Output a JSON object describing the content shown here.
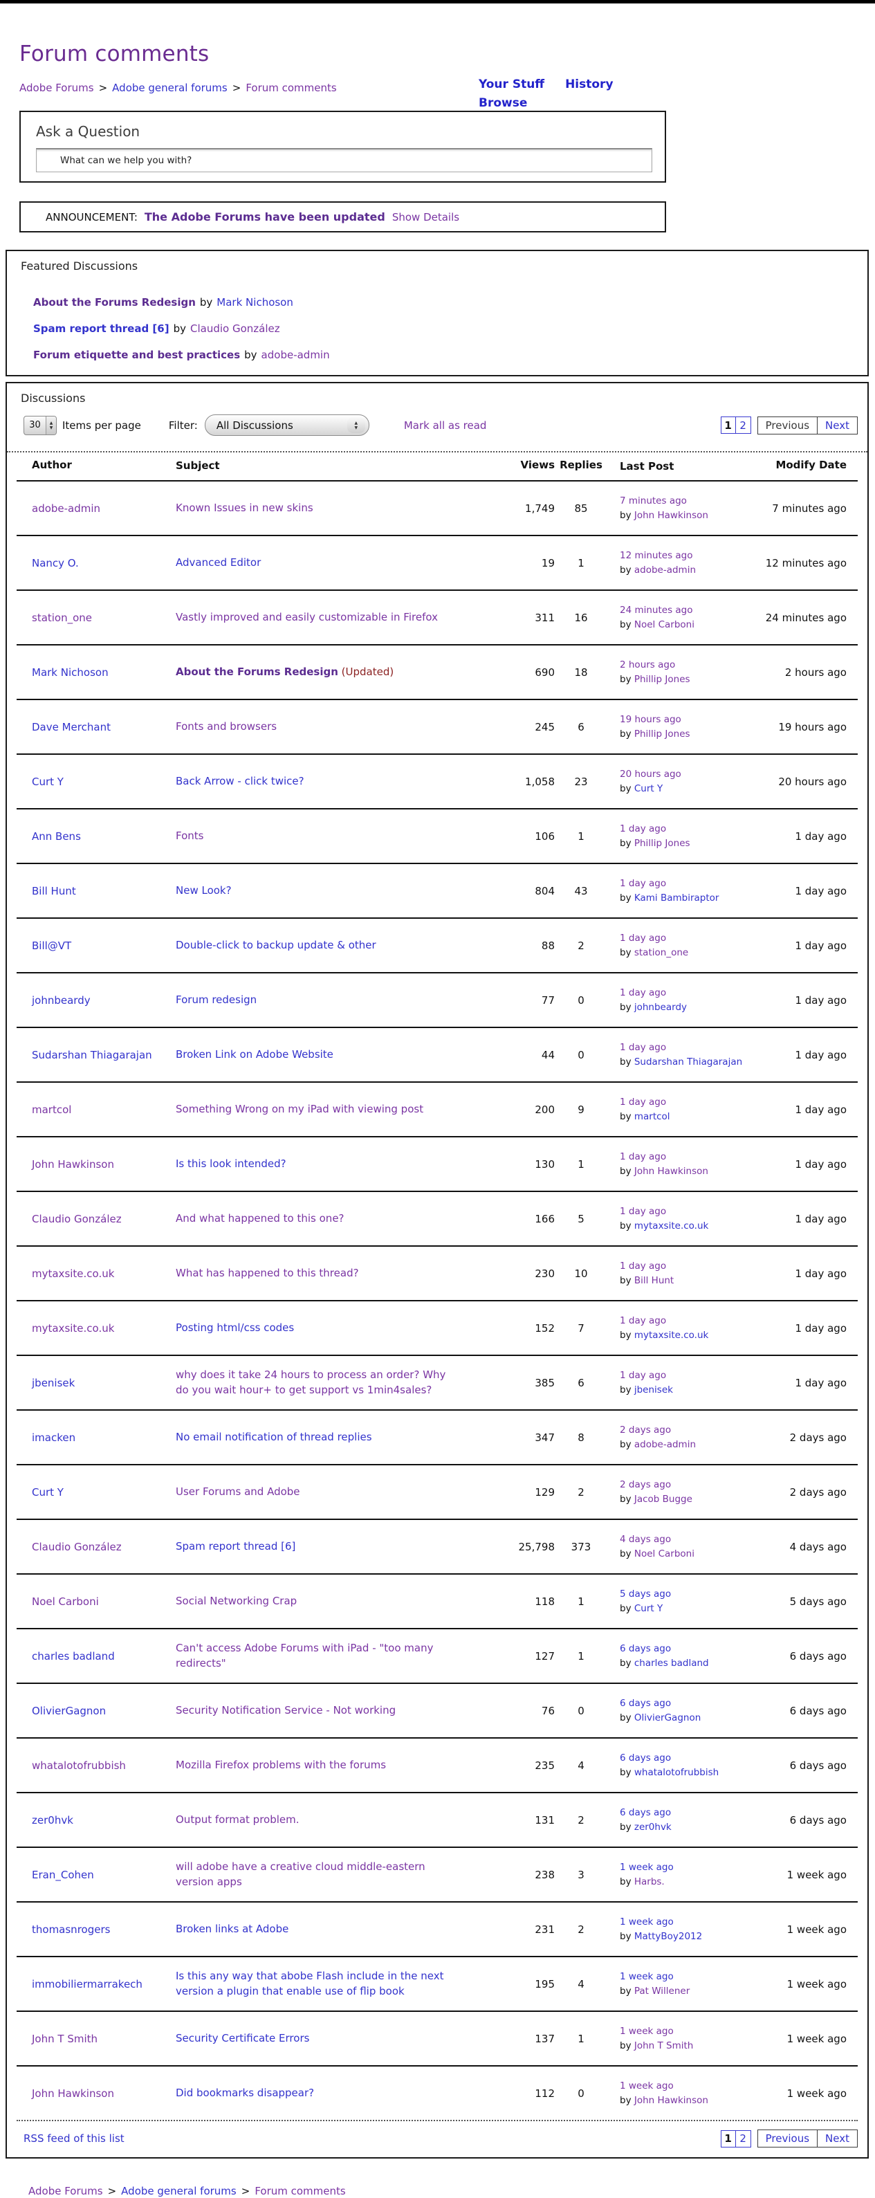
{
  "page": {
    "title": "Forum comments",
    "nav": {
      "your_stuff": "Your Stuff",
      "history": "History",
      "browse": "Browse"
    },
    "breadcrumb": {
      "items": [
        "Adobe Forums",
        "Adobe general forums",
        "Forum comments"
      ],
      "separator": ">"
    }
  },
  "ask": {
    "heading": "Ask a Question",
    "placeholder": "What can we help you with?"
  },
  "announcement": {
    "label": "ANNOUNCEMENT:",
    "message": "The Adobe Forums have been updated",
    "action": "Show Details"
  },
  "featured": {
    "heading": "Featured Discussions",
    "by_word": "by",
    "items": [
      {
        "title": "About the Forums Redesign",
        "title_color": "purple-bold",
        "author": "Mark Nichoson",
        "author_color": "blue"
      },
      {
        "title": "Spam report thread [6]",
        "title_color": "blue",
        "author": "Claudio González",
        "author_color": "purple"
      },
      {
        "title": "Forum etiquette and best practices",
        "title_color": "purple-bold",
        "author": "adobe-admin",
        "author_color": "purple"
      }
    ]
  },
  "discussions": {
    "heading": "Discussions",
    "items_per_page": {
      "value": "30",
      "label": "Items per page"
    },
    "filter": {
      "label": "Filter:",
      "value": "All Discussions"
    },
    "mark_all": "Mark all as read",
    "pagination": {
      "pages": [
        "1",
        "2"
      ],
      "previous": "Previous",
      "next": "Next"
    },
    "columns": [
      "Author",
      "Subject",
      "Views",
      "Replies",
      "Last Post",
      "Modify Date"
    ],
    "by_word": "by",
    "rss": "RSS feed of this list",
    "rows": [
      {
        "author": "adobe-admin",
        "author_color": "purple",
        "subject": "Known Issues in new skins",
        "subject_color": "purple",
        "subject_suffix": "",
        "views": "1,749",
        "replies": "85",
        "last_time": "7 minutes ago",
        "last_time_color": "purple",
        "last_by": "John Hawkinson",
        "last_by_color": "purple",
        "modified": "7 minutes ago"
      },
      {
        "author": "Nancy O.",
        "author_color": "blue",
        "subject": "Advanced Editor",
        "subject_color": "blue",
        "subject_suffix": "",
        "views": "19",
        "replies": "1",
        "last_time": "12 minutes ago",
        "last_time_color": "purple",
        "last_by": "adobe-admin",
        "last_by_color": "purple",
        "modified": "12 minutes ago"
      },
      {
        "author": "station_one",
        "author_color": "purple",
        "subject": "Vastly improved and easily customizable in Firefox",
        "subject_color": "purple",
        "subject_suffix": "",
        "views": "311",
        "replies": "16",
        "last_time": "24 minutes ago",
        "last_time_color": "purple",
        "last_by": "Noel Carboni",
        "last_by_color": "purple",
        "modified": "24 minutes ago"
      },
      {
        "author": "Mark Nichoson",
        "author_color": "blue",
        "subject": "About the Forums Redesign",
        "subject_color": "purple-bold",
        "subject_suffix": "(Updated)",
        "views": "690",
        "replies": "18",
        "last_time": "2 hours ago",
        "last_time_color": "purple",
        "last_by": "Phillip Jones",
        "last_by_color": "purple",
        "modified": "2 hours ago"
      },
      {
        "author": "Dave Merchant",
        "author_color": "blue",
        "subject": "Fonts and browsers",
        "subject_color": "purple",
        "subject_suffix": "",
        "views": "245",
        "replies": "6",
        "last_time": "19 hours ago",
        "last_time_color": "purple",
        "last_by": "Phillip Jones",
        "last_by_color": "purple",
        "modified": "19 hours ago"
      },
      {
        "author": "Curt Y",
        "author_color": "blue",
        "subject": "Back Arrow - click twice?",
        "subject_color": "blue",
        "subject_suffix": "",
        "views": "1,058",
        "replies": "23",
        "last_time": "20 hours ago",
        "last_time_color": "purple",
        "last_by": "Curt Y",
        "last_by_color": "blue",
        "modified": "20 hours ago"
      },
      {
        "author": "Ann Bens",
        "author_color": "blue",
        "subject": "Fonts",
        "subject_color": "purple",
        "subject_suffix": "",
        "views": "106",
        "replies": "1",
        "last_time": "1 day ago",
        "last_time_color": "purple",
        "last_by": "Phillip Jones",
        "last_by_color": "purple",
        "modified": "1 day ago"
      },
      {
        "author": "Bill Hunt",
        "author_color": "blue",
        "subject": "New Look?",
        "subject_color": "blue",
        "subject_suffix": "",
        "views": "804",
        "replies": "43",
        "last_time": "1 day ago",
        "last_time_color": "purple",
        "last_by": "Kami Bambiraptor",
        "last_by_color": "blue",
        "modified": "1 day ago"
      },
      {
        "author": "Bill@VT",
        "author_color": "blue",
        "subject": "Double-click to backup update & other",
        "subject_color": "blue",
        "subject_suffix": "",
        "views": "88",
        "replies": "2",
        "last_time": "1 day ago",
        "last_time_color": "purple",
        "last_by": "station_one",
        "last_by_color": "purple",
        "modified": "1 day ago"
      },
      {
        "author": "johnbeardy",
        "author_color": "blue",
        "subject": "Forum redesign",
        "subject_color": "blue",
        "subject_suffix": "",
        "views": "77",
        "replies": "0",
        "last_time": "1 day ago",
        "last_time_color": "purple",
        "last_by": "johnbeardy",
        "last_by_color": "blue",
        "modified": "1 day ago"
      },
      {
        "author": "Sudarshan Thiagarajan",
        "author_color": "blue",
        "subject": "Broken Link on Adobe Website",
        "subject_color": "blue",
        "subject_suffix": "",
        "views": "44",
        "replies": "0",
        "last_time": "1 day ago",
        "last_time_color": "purple",
        "last_by": "Sudarshan Thiagarajan",
        "last_by_color": "blue",
        "modified": "1 day ago"
      },
      {
        "author": "martcol",
        "author_color": "purple",
        "subject": "Something Wrong on my iPad with viewing post",
        "subject_color": "purple",
        "subject_suffix": "",
        "views": "200",
        "replies": "9",
        "last_time": "1 day ago",
        "last_time_color": "purple",
        "last_by": "martcol",
        "last_by_color": "blue",
        "modified": "1 day ago"
      },
      {
        "author": "John Hawkinson",
        "author_color": "purple",
        "subject": "Is this look intended?",
        "subject_color": "blue",
        "subject_suffix": "",
        "views": "130",
        "replies": "1",
        "last_time": "1 day ago",
        "last_time_color": "purple",
        "last_by": "John Hawkinson",
        "last_by_color": "purple",
        "modified": "1 day ago"
      },
      {
        "author": "Claudio González",
        "author_color": "purple",
        "subject": "And what happened to this one?",
        "subject_color": "purple",
        "subject_suffix": "",
        "views": "166",
        "replies": "5",
        "last_time": "1 day ago",
        "last_time_color": "purple",
        "last_by": "mytaxsite.co.uk",
        "last_by_color": "blue",
        "modified": "1 day ago"
      },
      {
        "author": "mytaxsite.co.uk",
        "author_color": "purple",
        "subject": "What has happened to this thread?",
        "subject_color": "purple",
        "subject_suffix": "",
        "views": "230",
        "replies": "10",
        "last_time": "1 day ago",
        "last_time_color": "purple",
        "last_by": "Bill Hunt",
        "last_by_color": "purple",
        "modified": "1 day ago"
      },
      {
        "author": "mytaxsite.co.uk",
        "author_color": "purple",
        "subject": "Posting html/css codes",
        "subject_color": "blue",
        "subject_suffix": "",
        "views": "152",
        "replies": "7",
        "last_time": "1 day ago",
        "last_time_color": "purple",
        "last_by": "mytaxsite.co.uk",
        "last_by_color": "blue",
        "modified": "1 day ago"
      },
      {
        "author": "jbenisek",
        "author_color": "blue",
        "subject": "why does it take 24 hours to process an order? Why do you wait hour+ to get support vs 1min4sales?",
        "subject_color": "purple",
        "subject_suffix": "",
        "views": "385",
        "replies": "6",
        "last_time": "1 day ago",
        "last_time_color": "purple",
        "last_by": "jbenisek",
        "last_by_color": "blue",
        "modified": "1 day ago"
      },
      {
        "author": "imacken",
        "author_color": "blue",
        "subject": "No email notification of thread replies",
        "subject_color": "blue",
        "subject_suffix": "",
        "views": "347",
        "replies": "8",
        "last_time": "2 days ago",
        "last_time_color": "purple",
        "last_by": "adobe-admin",
        "last_by_color": "purple",
        "modified": "2 days ago"
      },
      {
        "author": "Curt Y",
        "author_color": "blue",
        "subject": "User Forums and Adobe",
        "subject_color": "purple",
        "subject_suffix": "",
        "views": "129",
        "replies": "2",
        "last_time": "2 days ago",
        "last_time_color": "purple",
        "last_by": "Jacob Bugge",
        "last_by_color": "purple",
        "modified": "2 days ago"
      },
      {
        "author": "Claudio González",
        "author_color": "purple",
        "subject": "Spam report thread [6]",
        "subject_color": "blue",
        "subject_suffix": "",
        "views": "25,798",
        "replies": "373",
        "last_time": "4 days ago",
        "last_time_color": "purple",
        "last_by": "Noel Carboni",
        "last_by_color": "purple",
        "modified": "4 days ago"
      },
      {
        "author": "Noel Carboni",
        "author_color": "purple",
        "subject": "Social Networking Crap",
        "subject_color": "purple",
        "subject_suffix": "",
        "views": "118",
        "replies": "1",
        "last_time": "5 days ago",
        "last_time_color": "blue",
        "last_by": "Curt Y",
        "last_by_color": "blue",
        "modified": "5 days ago"
      },
      {
        "author": "charles badland",
        "author_color": "blue",
        "subject": "Can't access Adobe Forums with iPad - \"too many redirects\"",
        "subject_color": "purple",
        "subject_suffix": "",
        "views": "127",
        "replies": "1",
        "last_time": "6 days ago",
        "last_time_color": "blue",
        "last_by": "charles badland",
        "last_by_color": "blue",
        "modified": "6 days ago"
      },
      {
        "author": "OlivierGagnon",
        "author_color": "blue",
        "subject": "Security Notification Service - Not working",
        "subject_color": "purple",
        "subject_suffix": "",
        "views": "76",
        "replies": "0",
        "last_time": "6 days ago",
        "last_time_color": "blue",
        "last_by": "OlivierGagnon",
        "last_by_color": "blue",
        "modified": "6 days ago"
      },
      {
        "author": "whatalotofrubbish",
        "author_color": "purple",
        "subject": "Mozilla Firefox problems with the forums",
        "subject_color": "purple",
        "subject_suffix": "",
        "views": "235",
        "replies": "4",
        "last_time": "6 days ago",
        "last_time_color": "blue",
        "last_by": "whatalotofrubbish",
        "last_by_color": "blue",
        "modified": "6 days ago"
      },
      {
        "author": "zer0hvk",
        "author_color": "blue",
        "subject": "Output format problem.",
        "subject_color": "purple",
        "subject_suffix": "",
        "views": "131",
        "replies": "2",
        "last_time": "6 days ago",
        "last_time_color": "blue",
        "last_by": "zer0hvk",
        "last_by_color": "blue",
        "modified": "6 days ago"
      },
      {
        "author": "Eran_Cohen",
        "author_color": "blue",
        "subject": "will adobe have a creative cloud middle-eastern version apps",
        "subject_color": "purple",
        "subject_suffix": "",
        "views": "238",
        "replies": "3",
        "last_time": "1 week ago",
        "last_time_color": "blue",
        "last_by": "Harbs.",
        "last_by_color": "purple",
        "modified": "1 week ago"
      },
      {
        "author": "thomasnrogers",
        "author_color": "blue",
        "subject": "Broken links at Adobe",
        "subject_color": "blue",
        "subject_suffix": "",
        "views": "231",
        "replies": "2",
        "last_time": "1 week ago",
        "last_time_color": "blue",
        "last_by": "MattyBoy2012",
        "last_by_color": "blue",
        "modified": "1 week ago"
      },
      {
        "author": "immobiliermarrakech",
        "author_color": "blue",
        "subject": "Is this any way that abobe Flash include in the next version a plugin that enable use of flip book",
        "subject_color": "blue",
        "subject_suffix": "",
        "views": "195",
        "replies": "4",
        "last_time": "1 week ago",
        "last_time_color": "blue",
        "last_by": "Pat Willener",
        "last_by_color": "purple",
        "modified": "1 week ago"
      },
      {
        "author": "John T Smith",
        "author_color": "purple",
        "subject": "Security Certificate Errors",
        "subject_color": "blue",
        "subject_suffix": "",
        "views": "137",
        "replies": "1",
        "last_time": "1 week ago",
        "last_time_color": "purple",
        "last_by": "John T Smith",
        "last_by_color": "purple",
        "modified": "1 week ago"
      },
      {
        "author": "John Hawkinson",
        "author_color": "purple",
        "subject": "Did bookmarks disappear?",
        "subject_color": "blue",
        "subject_suffix": "",
        "views": "112",
        "replies": "0",
        "last_time": "1 week ago",
        "last_time_color": "purple",
        "last_by": "John Hawkinson",
        "last_by_color": "purple",
        "modified": "1 week ago"
      }
    ]
  },
  "colors": {
    "link_blue": "#3333cc",
    "link_purple": "#7a35a3",
    "bold_purple": "#5c2d91",
    "updated_red": "#8b2222",
    "title_purple": "#6a2c91"
  }
}
